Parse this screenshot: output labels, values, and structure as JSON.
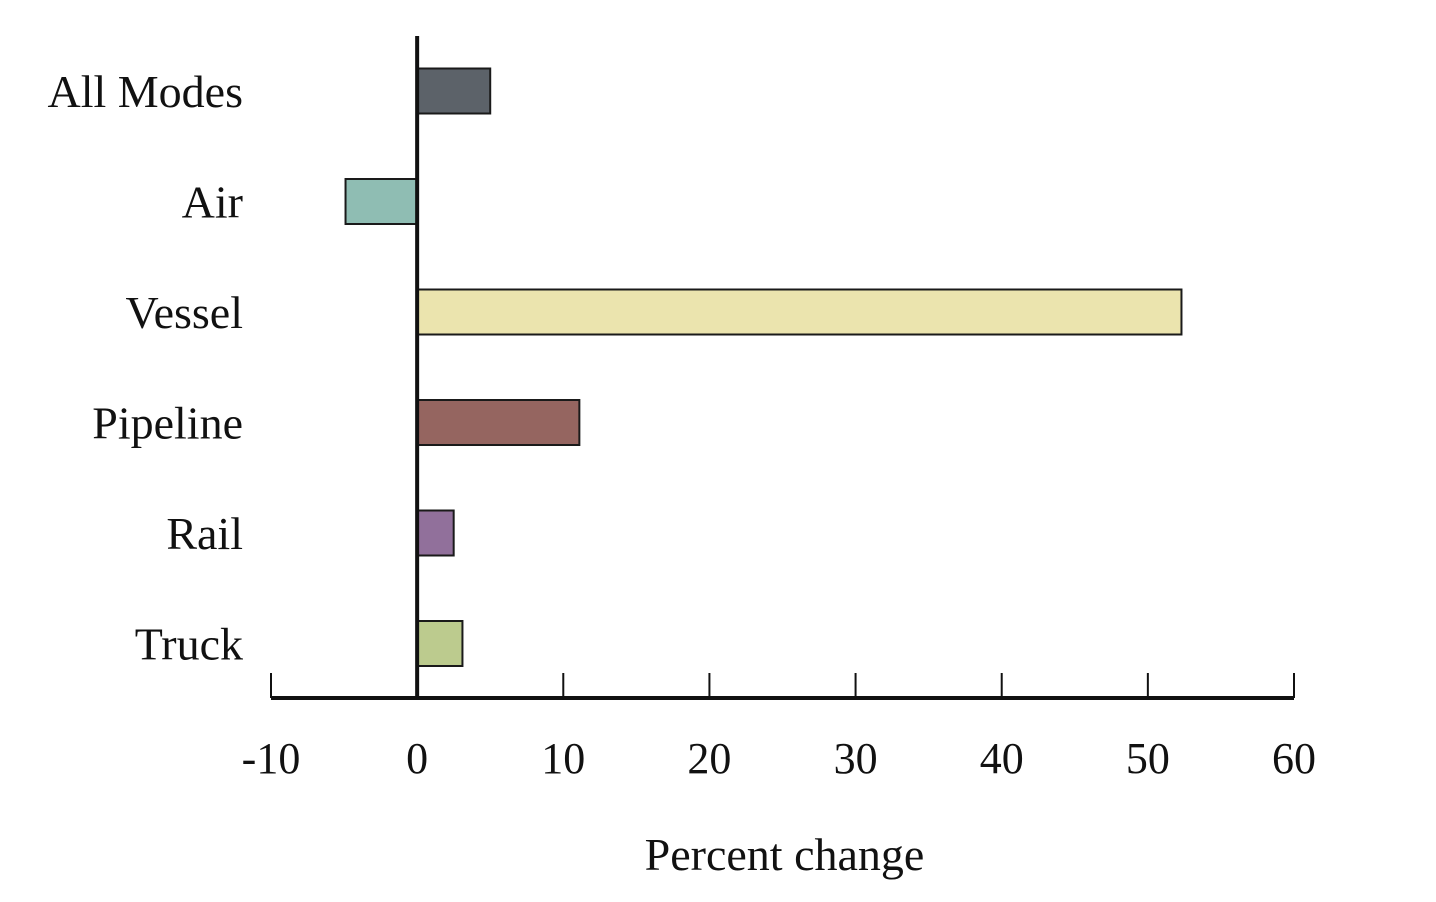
{
  "chart_data": {
    "type": "bar",
    "orientation": "horizontal",
    "title": "",
    "categories": [
      "All Modes",
      "Air",
      "Vessel",
      "Pipeline",
      "Rail",
      "Truck"
    ],
    "values": [
      5.0,
      -4.9,
      52.3,
      11.1,
      2.5,
      3.1
    ],
    "colors": [
      "#5c6269",
      "#8fbdb3",
      "#ebe4ae",
      "#956560",
      "#91709b",
      "#bccb8e"
    ],
    "xlabel": "Percent change",
    "ylabel": "",
    "xlim": [
      -10,
      60
    ],
    "xticks": [
      -10,
      0,
      10,
      20,
      30,
      40,
      50,
      60
    ],
    "xtick_labels": [
      "-10",
      "0",
      "10",
      "20",
      "30",
      "40",
      "50",
      "60"
    ],
    "grid": false,
    "legend": "none"
  }
}
